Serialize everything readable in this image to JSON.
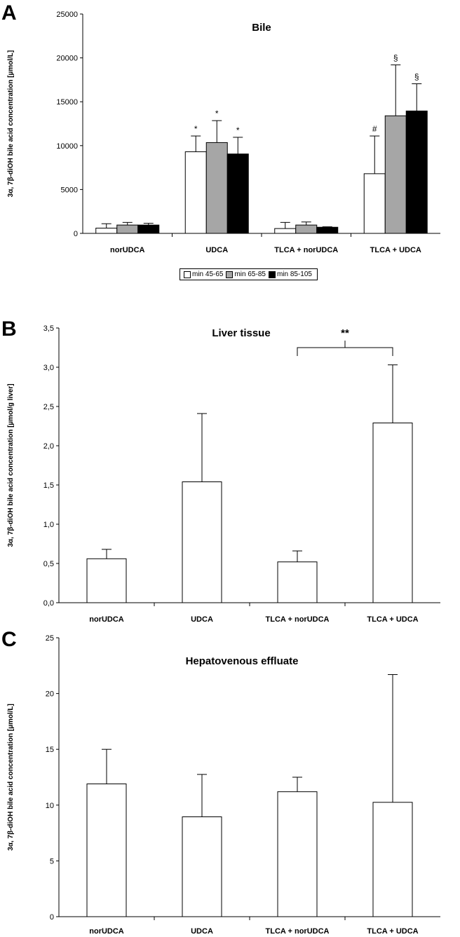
{
  "chart_data": [
    {
      "panel_label": "A",
      "type": "bar",
      "title": "Bile",
      "ylabel": "3α, 7β-diOH bile acid concentration [µmol/L]",
      "ylim": [
        0,
        25000
      ],
      "yticks": [
        0,
        5000,
        10000,
        15000,
        20000,
        25000
      ],
      "categories": [
        "norUDCA",
        "UDCA",
        "TLCA + norUDCA",
        "TLCA + UDCA"
      ],
      "series": [
        {
          "name": "min 45-65",
          "color": "#ffffff",
          "values": [
            600,
            9300,
            550,
            6800
          ],
          "errors": [
            500,
            1800,
            700,
            4300
          ]
        },
        {
          "name": "min 65-85",
          "color": "#a6a6a6",
          "values": [
            950,
            10350,
            950,
            13400
          ],
          "errors": [
            300,
            2500,
            350,
            5800
          ]
        },
        {
          "name": "min 85-105",
          "color": "#000000",
          "values": [
            950,
            9050,
            700,
            13950
          ],
          "errors": [
            200,
            1900,
            50,
            3100
          ]
        }
      ],
      "annotations": [
        {
          "category": 1,
          "series": 0,
          "text": "*"
        },
        {
          "category": 1,
          "series": 1,
          "text": "*"
        },
        {
          "category": 1,
          "series": 2,
          "text": "*"
        },
        {
          "category": 3,
          "series": 0,
          "text": "#"
        },
        {
          "category": 3,
          "series": 1,
          "text": "§"
        },
        {
          "category": 3,
          "series": 2,
          "text": "§"
        }
      ],
      "legend_position": "bottom",
      "grid": false
    },
    {
      "panel_label": "B",
      "type": "bar",
      "title": "Liver tissue",
      "ylabel": "3α, 7β-diOH bile acid concentration [µmol/g liver]",
      "ylim": [
        0,
        3.5
      ],
      "yticks": [
        "0,0",
        "0,5",
        "1,0",
        "1,5",
        "2,0",
        "2,5",
        "3,0",
        "3,5"
      ],
      "categories": [
        "norUDCA",
        "UDCA",
        "TLCA + norUDCA",
        "TLCA + UDCA"
      ],
      "values": [
        0.56,
        1.54,
        0.52,
        2.29
      ],
      "errors": [
        0.12,
        0.87,
        0.14,
        0.74
      ],
      "significance": {
        "from": 2,
        "to": 3,
        "text": "**",
        "level": 3.25
      },
      "grid": false
    },
    {
      "panel_label": "C",
      "type": "bar",
      "title": "Hepatovenous effluate",
      "ylabel": "3α, 7β-diOH bile acid concentration [µmol/L]",
      "ylim": [
        0,
        25
      ],
      "yticks": [
        0,
        5,
        10,
        15,
        20,
        25
      ],
      "categories": [
        "norUDCA",
        "UDCA",
        "TLCA + norUDCA",
        "TLCA + UDCA"
      ],
      "values": [
        11.9,
        8.95,
        11.2,
        10.25
      ],
      "errors": [
        3.1,
        3.8,
        1.3,
        11.45
      ],
      "grid": false
    }
  ]
}
